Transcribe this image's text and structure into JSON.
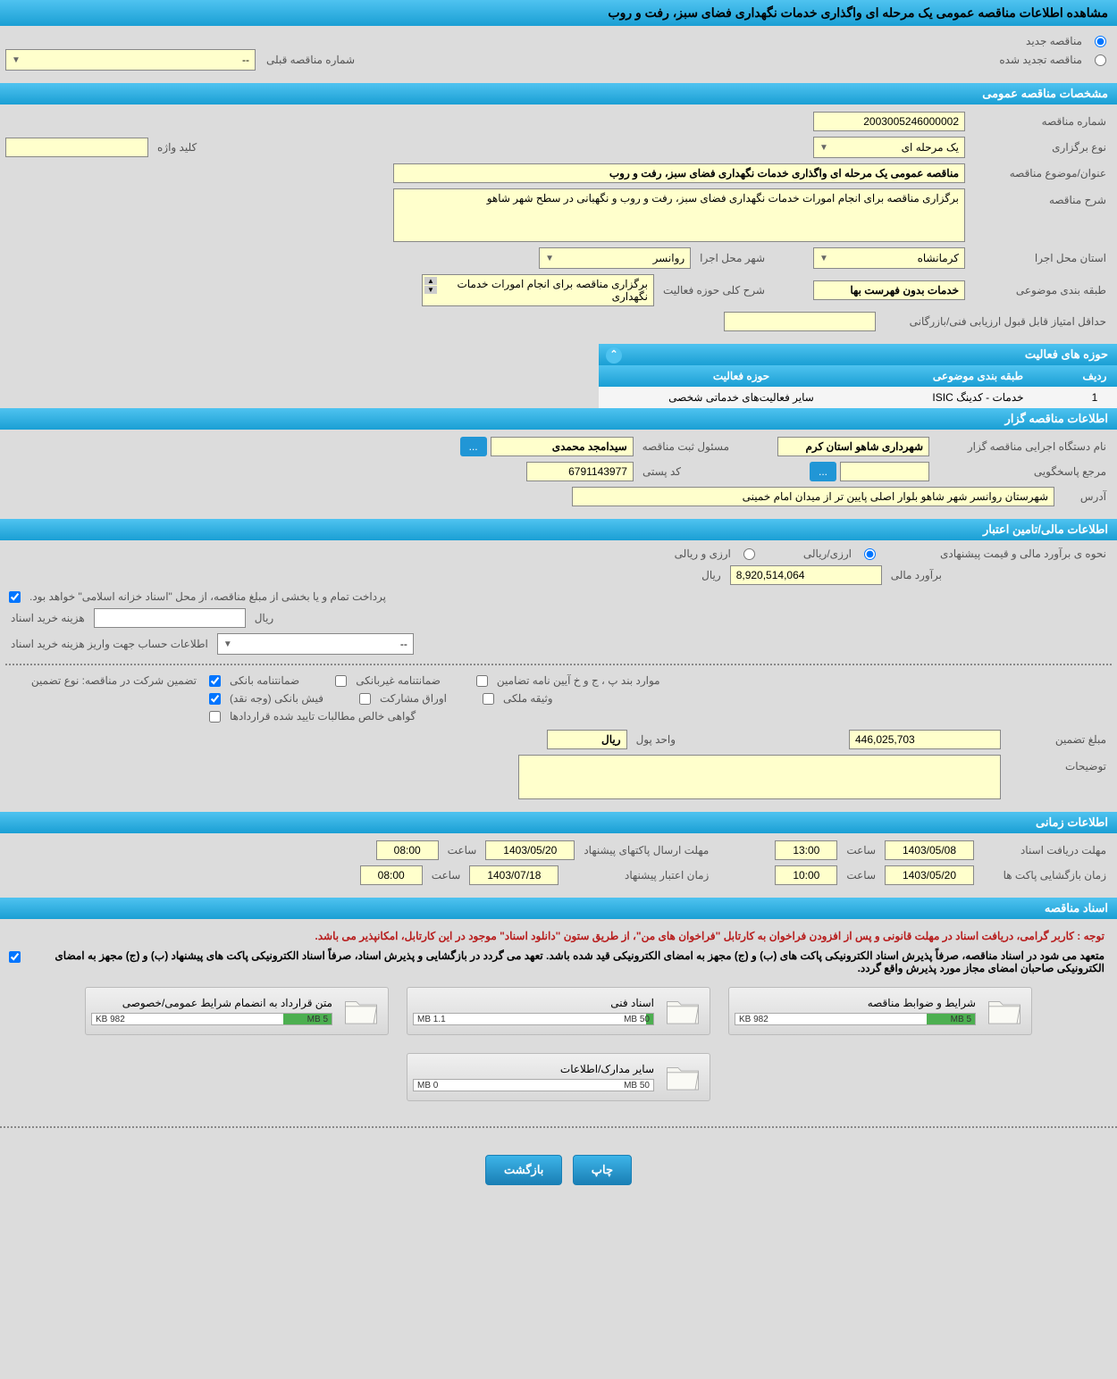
{
  "page_title": "مشاهده اطلاعات مناقصه عمومی یک مرحله ای واگذاری خدمات نگهداری فضای سبز، رفت و روب",
  "tender_type": {
    "new_label": "مناقصه جدید",
    "renewed_label": "مناقصه تجدید شده",
    "new_checked": true,
    "prev_number_label": "شماره مناقصه قبلی",
    "prev_number_value": "--"
  },
  "sections": {
    "general": {
      "title": "مشخصات مناقصه عمومی",
      "fields": {
        "tender_no_label": "شماره مناقصه",
        "tender_no": "2003005246000002",
        "hold_type_label": "نوع برگزاری",
        "hold_type": "یک مرحله ای",
        "keyword_label": "کلید واژه",
        "keyword": "",
        "title_label": "عنوان/موضوع مناقصه",
        "title_value": "مناقصه عمومی یک مرحله ای واگذاری خدمات نگهداری فضای سبز، رفت و روب",
        "desc_label": "شرح مناقصه",
        "desc_value": "برگزاری مناقصه برای انجام امورات خدمات نگهداری فضای سبز، رفت و روب و نگهبانی در سطح شهر شاهو",
        "province_label": "استان محل اجرا",
        "province": "کرمانشاه",
        "city_label": "شهر محل اجرا",
        "city": "روانسر",
        "category_label": "طبقه بندی موضوعی",
        "category": "خدمات بدون فهرست بها",
        "activity_desc_label": "شرح کلی حوزه فعالیت",
        "activity_desc": "برگزاری مناقصه برای انجام امورات خدمات نگهداری",
        "min_score_label": "حداقل امتیاز قابل قبول ارزیابی فنی/بازرگانی",
        "min_score": ""
      }
    },
    "activities": {
      "title": "حوزه های فعالیت",
      "columns": [
        "ردیف",
        "طبقه بندی موضوعی",
        "حوزه فعالیت"
      ],
      "rows": [
        [
          "1",
          "خدمات - کدینگ ISIC",
          "سایر فعالیت‌های خدماتی شخصی"
        ]
      ]
    },
    "organizer": {
      "title": "اطلاعات مناقصه گزار",
      "fields": {
        "org_name_label": "نام دستگاه اجرایی مناقصه گزار",
        "org_name": "شهرداری شاهو استان کرم",
        "registrar_label": "مسئول ثبت مناقصه",
        "registrar": "سیدامجد محمدی",
        "responder_label": "مرجع پاسخگویی",
        "responder": "",
        "postal_label": "کد پستی",
        "postal": "6791143977",
        "address_label": "آدرس",
        "address": "شهرستان روانسر شهر شاهو بلوار اصلی پایین تر از میدان امام خمینی"
      }
    },
    "financial": {
      "title": "اطلاعات مالی/تامین اعتبار",
      "fields": {
        "est_method_label": "نحوه ی برآورد مالی و قیمت پیشنهادی",
        "currency_rial_label": "ارزی/ریالی",
        "currency_both_label": "ارزی و ریالی",
        "currency_rial": true,
        "est_amount_label": "برآورد مالی",
        "est_amount": "8,920,514,064",
        "est_unit": "ریال",
        "payment_note": "پرداخت تمام و یا بخشی از مبلغ مناقصه، از محل \"اسناد خزانه اسلامی\" خواهد بود.",
        "doc_fee_label": "هزینه خرید اسناد",
        "doc_fee_unit": "ریال",
        "account_info_label": "اطلاعات حساب جهت واریز هزینه خرید اسناد",
        "account_info": "--"
      },
      "guarantee": {
        "type_label": "تضمین شرکت در مناقصه:    نوع تضمین",
        "types": {
          "bank_guarantee": "ضمانتنامه بانکی",
          "nonbank_guarantee": "ضمانتنامه غیربانکی",
          "bylaw_items": "موارد بند پ ، ج و خ آیین نامه تضامین",
          "bank_receipt": "فیش بانکی (وجه نقد)",
          "bonds": "اوراق مشارکت",
          "property": "وثیقه ملکی",
          "receivables": "گواهی خالص مطالبات تایید شده قراردادها"
        },
        "checked": {
          "bank_guarantee": true,
          "bank_receipt": true
        },
        "amount_label": "مبلغ تضمین",
        "amount": "446,025,703",
        "unit_label": "واحد پول",
        "unit": "ریال",
        "notes_label": "توضیحات",
        "notes": ""
      }
    },
    "time": {
      "title": "اطلاعات زمانی",
      "fields": {
        "receive_deadline_label": "مهلت دریافت اسناد",
        "receive_deadline_date": "1403/05/08",
        "receive_deadline_time_label": "ساعت",
        "receive_deadline_time": "13:00",
        "send_deadline_label": "مهلت ارسال پاکتهای پیشنهاد",
        "send_deadline_date": "1403/05/20",
        "send_deadline_time": "08:00",
        "open_time_label": "زمان بازگشایی پاکت ها",
        "open_date": "1403/05/20",
        "open_time": "10:00",
        "validity_label": "زمان اعتبار پیشنهاد",
        "validity_date": "1403/07/18",
        "validity_time": "08:00"
      }
    },
    "docs": {
      "title": "اسناد مناقصه",
      "note_red": "توجه : کاربر گرامی، دریافت اسناد در مهلت قانونی و پس از افزودن فراخوان به کارتابل \"فراخوان های من\"، از طریق ستون \"دانلود اسناد\" موجود در این کارتابل، امکانپذیر می باشد.",
      "note_black": "متعهد می شود در اسناد مناقصه، صرفاً پذیرش اسناد الکترونیکی پاکت های (ب) و (ج) مجهز به امضای الکترونیکی قید شده باشد. تعهد می گردد در بازگشایی و پذیرش اسناد، صرفاً اسناد الکترونیکی پاکت های پیشنهاد (ب) و (ج) مجهز به امضای الکترونیکی صاحبان امضای مجاز مورد پذیرش واقع گردد.",
      "files": [
        {
          "name": "شرایط و ضوابط مناقصه",
          "used": "982 KB",
          "total": "5 MB",
          "pct": 20
        },
        {
          "name": "اسناد فنی",
          "used": "1.1 MB",
          "total": "50 MB",
          "pct": 3
        },
        {
          "name": "متن قرارداد به انضمام شرایط عمومی/خصوصی",
          "used": "982 KB",
          "total": "5 MB",
          "pct": 20
        },
        {
          "name": "سایر مدارک/اطلاعات",
          "used": "0 MB",
          "total": "50 MB",
          "pct": 0
        }
      ]
    }
  },
  "buttons": {
    "print": "چاپ",
    "back": "بازگشت",
    "more": "..."
  },
  "colors": {
    "header_grad_top": "#4fc3f0",
    "header_grad_bottom": "#1a9fd4",
    "field_bg": "#ffffcc",
    "body_bg": "#dcdcdc",
    "btn_bg": "#2196d6",
    "progress_fill": "#4caf50"
  }
}
